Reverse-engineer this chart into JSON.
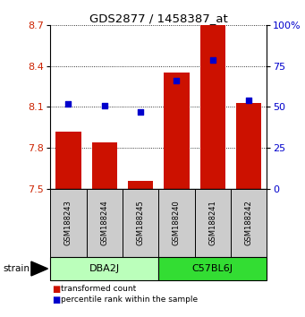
{
  "title": "GDS2877 / 1458387_at",
  "samples": [
    "GSM188243",
    "GSM188244",
    "GSM188245",
    "GSM188240",
    "GSM188241",
    "GSM188242"
  ],
  "red_values": [
    7.92,
    7.84,
    7.56,
    8.35,
    8.72,
    8.13
  ],
  "blue_values": [
    52,
    51,
    47,
    66,
    79,
    54
  ],
  "ylim_left": [
    7.5,
    8.7
  ],
  "ylim_right": [
    0,
    100
  ],
  "yticks_left": [
    7.5,
    7.8,
    8.1,
    8.4,
    8.7
  ],
  "yticks_right": [
    0,
    25,
    50,
    75,
    100
  ],
  "ytick_labels_right": [
    "0",
    "25",
    "50",
    "75",
    "100%"
  ],
  "bar_color": "#cc1100",
  "dot_color": "#0000cc",
  "groups": [
    {
      "label": "DBA2J",
      "color": "#bbffbb",
      "start": 0,
      "end": 2
    },
    {
      "label": "C57BL6J",
      "color": "#33dd33",
      "start": 3,
      "end": 5
    }
  ],
  "strain_label": "strain",
  "legend_red": "transformed count",
  "legend_blue": "percentile rank within the sample",
  "bar_width": 0.7,
  "background_color": "#ffffff",
  "plot_bg_color": "#ffffff",
  "grid_color": "#000000",
  "tick_label_color_left": "#cc2200",
  "tick_label_color_right": "#0000cc",
  "sample_box_color": "#cccccc",
  "title_fontsize": 9.5
}
